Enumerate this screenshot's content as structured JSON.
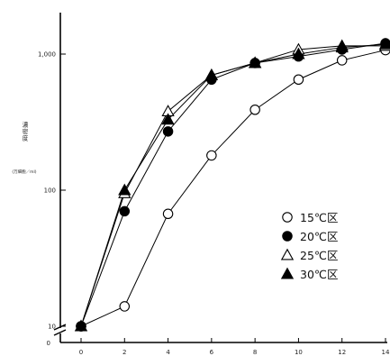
{
  "chart_data": {
    "type": "line",
    "title": "",
    "ylabel": "濃密度",
    "ylabel_unit": "(万細胞／ml)",
    "xlabel": "",
    "yscale": "log",
    "ylim": [
      8,
      1300
    ],
    "xlim": [
      0,
      14
    ],
    "x_ticks": [
      0,
      2,
      4,
      6,
      8,
      10,
      12,
      14
    ],
    "x_tick_labels": [
      "0",
      "2",
      "4",
      "6",
      "8",
      "10",
      "12",
      "14"
    ],
    "y_ticks": [
      10,
      100,
      1000
    ],
    "y_tick_labels": [
      "10",
      "100",
      "1,000"
    ],
    "y_axis_break_label": "0",
    "grid": false,
    "legend_position": "right",
    "x": [
      0,
      2,
      4,
      6,
      8,
      10,
      12,
      14
    ],
    "series": [
      {
        "name": "15℃区",
        "marker": "circle-open",
        "color": "#000000",
        "values": [
          10,
          14,
          67,
          180,
          390,
          650,
          900,
          1070
        ]
      },
      {
        "name": "20℃区",
        "marker": "circle-filled",
        "color": "#000000",
        "values": [
          10,
          70,
          270,
          650,
          860,
          960,
          1080,
          1200
        ]
      },
      {
        "name": "25℃区",
        "marker": "triangle-open",
        "color": "#000000",
        "values": [
          10,
          95,
          380,
          700,
          860,
          1080,
          1150,
          1150
        ]
      },
      {
        "name": "30℃区",
        "marker": "triangle-filled",
        "color": "#000000",
        "values": [
          10,
          100,
          330,
          700,
          860,
          1000,
          1120,
          1180
        ]
      }
    ]
  }
}
